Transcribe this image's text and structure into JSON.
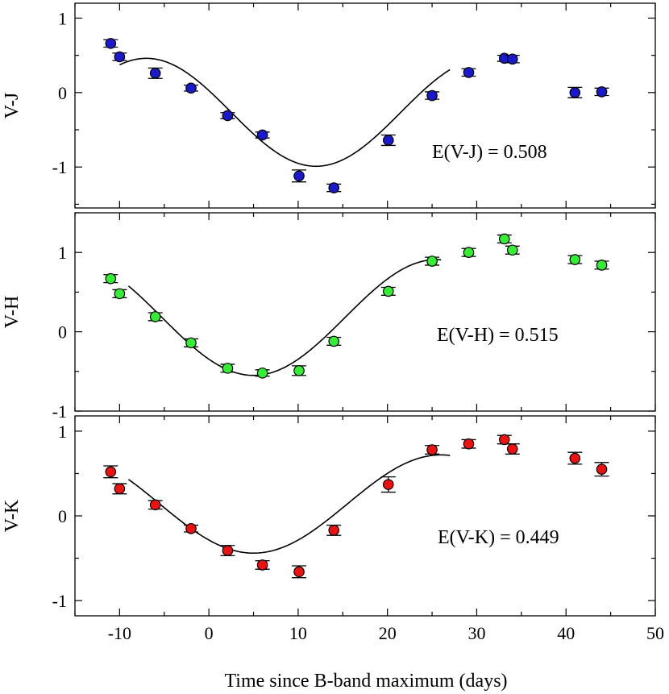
{
  "chart_data": [
    {
      "type": "scatter",
      "ylabel": "V-J",
      "annotation": "E(V-J) = 0.508",
      "marker_color": "#1a1acc",
      "xlim": [
        -15,
        50
      ],
      "ylim": [
        -1.55,
        1.2
      ],
      "xticks": [
        -10,
        0,
        10,
        20,
        30,
        40,
        50
      ],
      "yticks": [
        1,
        0,
        -1
      ],
      "y_tick_labels": [
        "1",
        "0",
        "-1"
      ],
      "show_x_tick_labels": false,
      "points": [
        {
          "x": -11,
          "y": 0.66,
          "err": 0.05
        },
        {
          "x": -10,
          "y": 0.48,
          "err": 0.05
        },
        {
          "x": -6,
          "y": 0.26,
          "err": 0.07
        },
        {
          "x": -2,
          "y": 0.06,
          "err": 0.04
        },
        {
          "x": 2.1,
          "y": -0.31,
          "err": 0.04
        },
        {
          "x": 6,
          "y": -0.57,
          "err": 0.04
        },
        {
          "x": 10.1,
          "y": -1.12,
          "err": 0.08
        },
        {
          "x": 14,
          "y": -1.28,
          "err": 0.05
        },
        {
          "x": 20.1,
          "y": -0.64,
          "err": 0.07
        },
        {
          "x": 25,
          "y": -0.04,
          "err": 0.05
        },
        {
          "x": 29.1,
          "y": 0.27,
          "err": 0.05
        },
        {
          "x": 33.1,
          "y": 0.46,
          "err": 0.04
        },
        {
          "x": 34,
          "y": 0.45,
          "err": 0.05
        },
        {
          "x": 41,
          "y": 0.0,
          "err": 0.07
        },
        {
          "x": 44,
          "y": 0.01,
          "err": 0.05
        }
      ],
      "fit": {
        "x_start": -10,
        "x_end": 27,
        "min_x": 12,
        "min_y": -0.99,
        "max_y": 0.46,
        "half_period": 19
      }
    },
    {
      "type": "scatter",
      "ylabel": "V-H",
      "annotation": "E(V-H) = 0.515",
      "marker_color": "#33ee33",
      "xlim": [
        -15,
        50
      ],
      "ylim": [
        -1.0,
        1.5
      ],
      "xticks": [
        -10,
        0,
        10,
        20,
        30,
        40,
        50
      ],
      "yticks": [
        1,
        0,
        -1
      ],
      "y_tick_labels": [
        "1",
        "0",
        "-1"
      ],
      "show_x_tick_labels": false,
      "points": [
        {
          "x": -11,
          "y": 0.67,
          "err": 0.05
        },
        {
          "x": -10,
          "y": 0.48,
          "err": 0.05
        },
        {
          "x": -6,
          "y": 0.19,
          "err": 0.05
        },
        {
          "x": -2,
          "y": -0.14,
          "err": 0.05
        },
        {
          "x": 2.1,
          "y": -0.46,
          "err": 0.05
        },
        {
          "x": 6,
          "y": -0.52,
          "err": 0.04
        },
        {
          "x": 10.1,
          "y": -0.49,
          "err": 0.06
        },
        {
          "x": 14,
          "y": -0.12,
          "err": 0.05
        },
        {
          "x": 20.1,
          "y": 0.51,
          "err": 0.05
        },
        {
          "x": 25,
          "y": 0.89,
          "err": 0.05
        },
        {
          "x": 29.1,
          "y": 1.0,
          "err": 0.05
        },
        {
          "x": 33.1,
          "y": 1.17,
          "err": 0.05
        },
        {
          "x": 34,
          "y": 1.03,
          "err": 0.05
        },
        {
          "x": 41,
          "y": 0.91,
          "err": 0.05
        },
        {
          "x": 44,
          "y": 0.84,
          "err": 0.05
        }
      ],
      "fit": {
        "x_start": -9,
        "x_end": 26,
        "min_x": 5,
        "min_y": -0.55,
        "max_y": 0.91,
        "half_period": 20.5
      }
    },
    {
      "type": "scatter",
      "ylabel": "V-K",
      "annotation": "E(V-K) = 0.449",
      "marker_color": "#ee1111",
      "xlim": [
        -15,
        50
      ],
      "ylim": [
        -1.18,
        1.18
      ],
      "xticks": [
        -10,
        0,
        10,
        20,
        30,
        40,
        50
      ],
      "x_tick_labels": [
        "-10",
        "0",
        "10",
        "20",
        "30",
        "40",
        "50"
      ],
      "yticks": [
        1,
        0,
        -1
      ],
      "y_tick_labels": [
        "1",
        "0",
        "-1"
      ],
      "show_x_tick_labels": true,
      "xlabel": "Time since B-band maximum (days)",
      "points": [
        {
          "x": -11,
          "y": 0.52,
          "err": 0.07
        },
        {
          "x": -10,
          "y": 0.32,
          "err": 0.06
        },
        {
          "x": -6,
          "y": 0.13,
          "err": 0.05
        },
        {
          "x": -2,
          "y": -0.15,
          "err": 0.04
        },
        {
          "x": 2.1,
          "y": -0.41,
          "err": 0.06
        },
        {
          "x": 6,
          "y": -0.58,
          "err": 0.05
        },
        {
          "x": 10.1,
          "y": -0.66,
          "err": 0.07
        },
        {
          "x": 14,
          "y": -0.17,
          "err": 0.06
        },
        {
          "x": 20.1,
          "y": 0.37,
          "err": 0.09
        },
        {
          "x": 25,
          "y": 0.78,
          "err": 0.05
        },
        {
          "x": 29.1,
          "y": 0.85,
          "err": 0.05
        },
        {
          "x": 33.1,
          "y": 0.9,
          "err": 0.05
        },
        {
          "x": 34,
          "y": 0.79,
          "err": 0.06
        },
        {
          "x": 41,
          "y": 0.68,
          "err": 0.07
        },
        {
          "x": 44,
          "y": 0.55,
          "err": 0.08
        }
      ],
      "fit": {
        "x_start": -9,
        "x_end": 27,
        "min_x": 5,
        "min_y": -0.44,
        "max_y": 0.72,
        "half_period": 21
      }
    }
  ]
}
